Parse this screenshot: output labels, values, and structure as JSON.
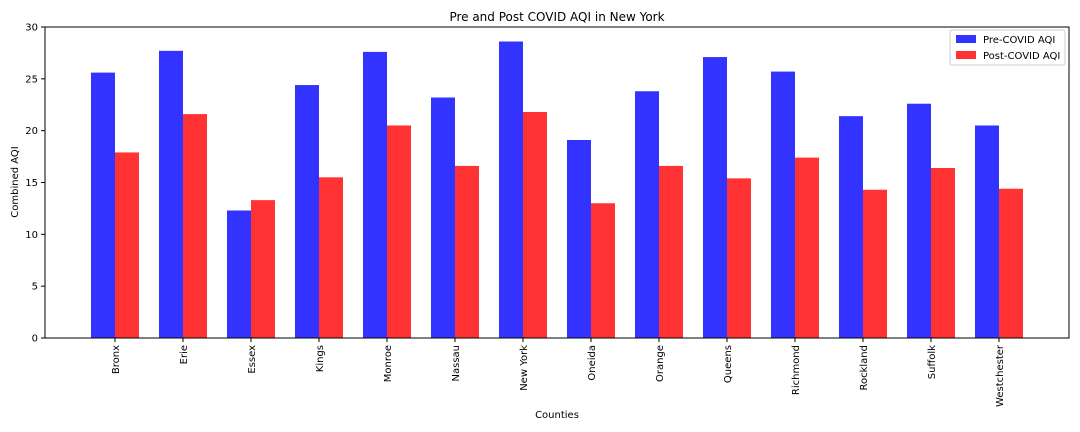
{
  "chart_data": {
    "type": "bar",
    "title": "Pre and Post COVID AQI in New York",
    "xlabel": "Counties",
    "ylabel": "Combined AQI",
    "ylim": [
      0,
      30
    ],
    "yticks": [
      0,
      5,
      10,
      15,
      20,
      25,
      30
    ],
    "categories": [
      "Bronx",
      "Erie",
      "Essex",
      "Kings",
      "Monroe",
      "Nassau",
      "New York",
      "Oneida",
      "Orange",
      "Queens",
      "Richmond",
      "Rockland",
      "Suffolk",
      "Westchester"
    ],
    "series": [
      {
        "name": "Pre-COVID AQI",
        "color": "#3333ff",
        "values": [
          25.6,
          27.7,
          12.3,
          24.4,
          27.6,
          23.2,
          28.6,
          19.1,
          23.8,
          27.1,
          25.7,
          21.4,
          22.6,
          20.5
        ]
      },
      {
        "name": "Post-COVID AQI",
        "color": "#ff3333",
        "values": [
          17.9,
          21.6,
          13.3,
          15.5,
          20.5,
          16.6,
          21.8,
          13.0,
          16.6,
          15.4,
          17.4,
          14.3,
          16.4,
          14.4
        ]
      }
    ],
    "legend_position": "top-right",
    "grid": false
  }
}
